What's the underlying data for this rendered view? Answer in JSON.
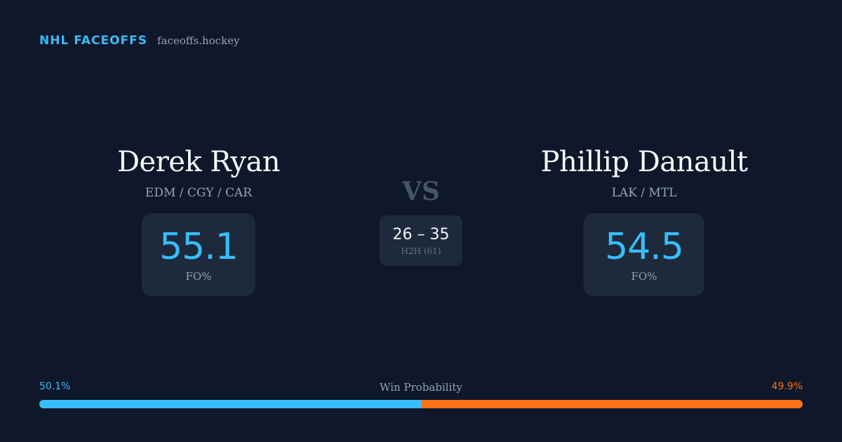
{
  "brand": {
    "name": "NHL FACEOFFS",
    "url": "faceoffs.hockey"
  },
  "player_left": {
    "name": "Derek Ryan",
    "teams": "EDM / CGY / CAR",
    "stat_value": "55.1",
    "stat_label": "FO%"
  },
  "player_right": {
    "name": "Phillip Danault",
    "teams": "LAK / MTL",
    "stat_value": "54.5",
    "stat_label": "FO%"
  },
  "vs_label": "VS",
  "head_to_head": {
    "score": "26 – 35",
    "label": "H2H (61)"
  },
  "win_probability": {
    "title": "Win Probability",
    "left_label": "50.1%",
    "right_label": "49.9%",
    "left_fraction": 0.501,
    "right_fraction": 0.499,
    "left_color": "#38bdf8",
    "right_color": "#f97316"
  }
}
